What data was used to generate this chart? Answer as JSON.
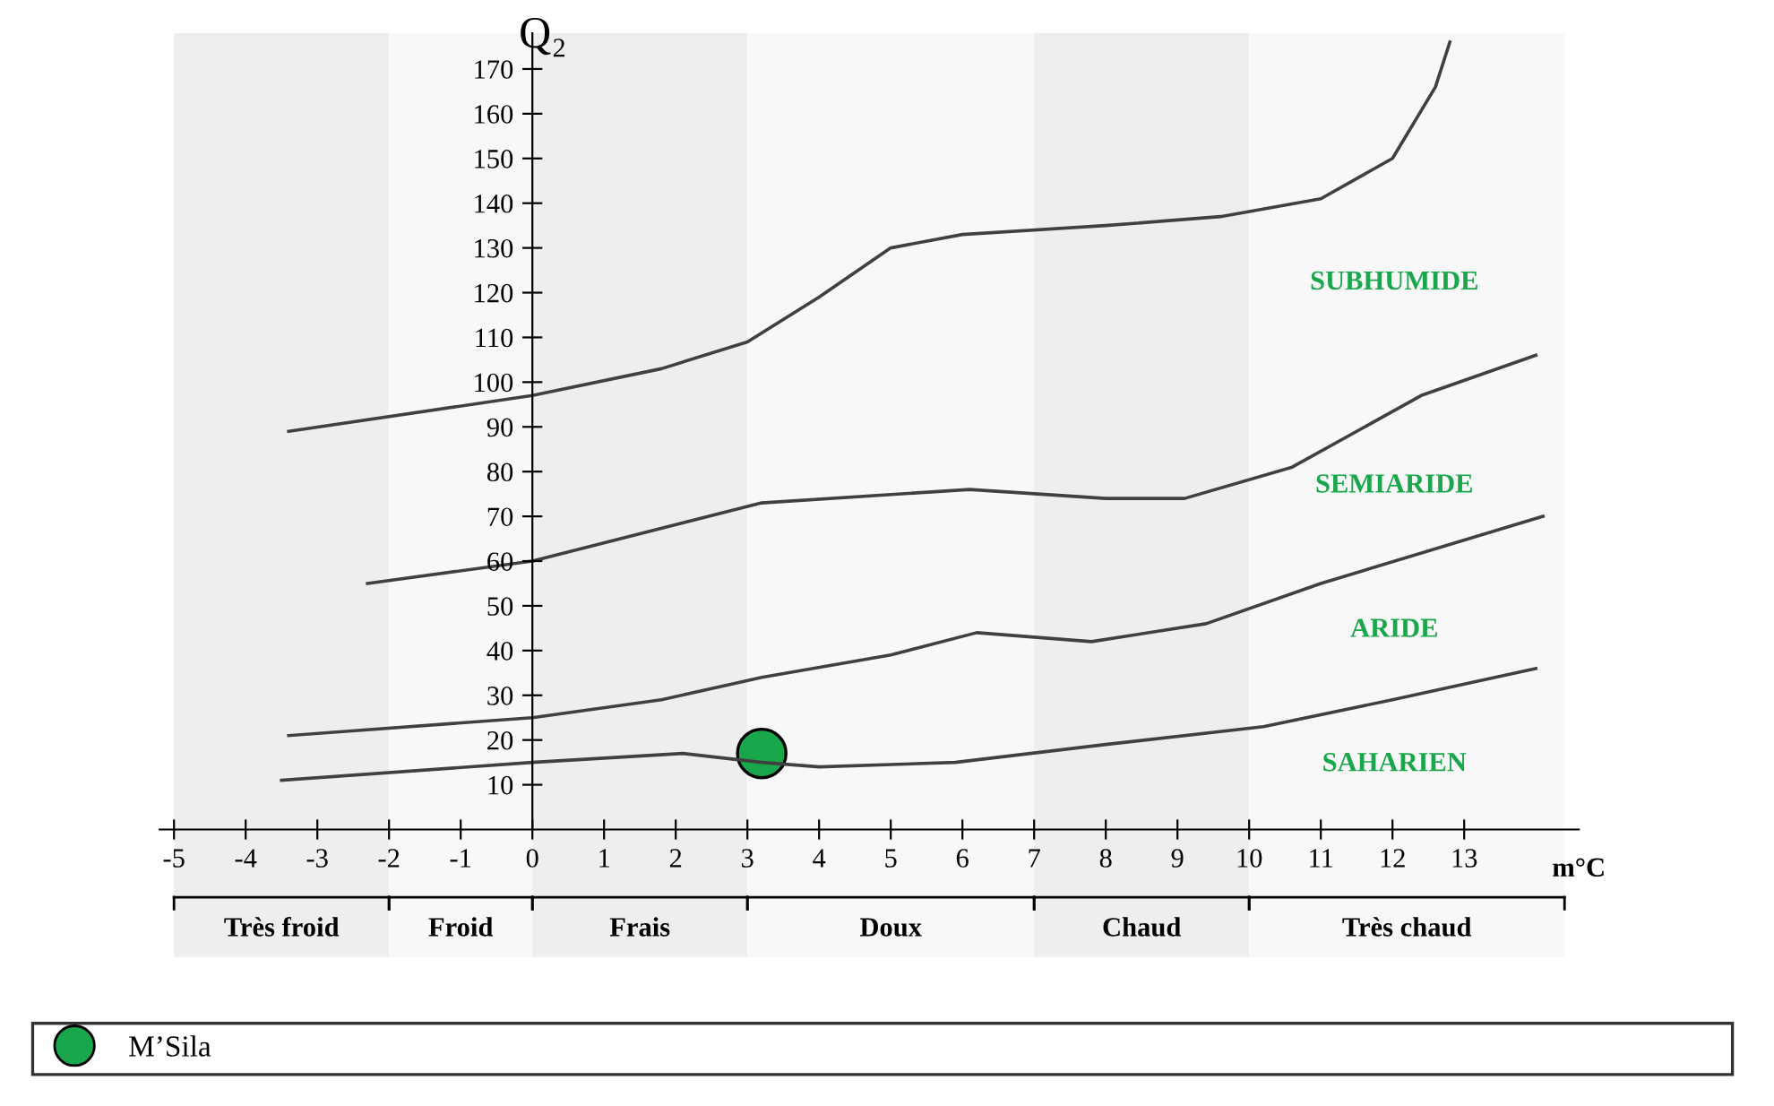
{
  "chart_data": {
    "type": "line",
    "ylabel": "Q₂",
    "xlabel": "m°C",
    "xlim": [
      -5.2,
      14.6
    ],
    "ylim": [
      0,
      178
    ],
    "xticks": [
      -5,
      -4,
      -3,
      -2,
      -1,
      0,
      1,
      2,
      3,
      4,
      5,
      6,
      7,
      8,
      9,
      10,
      11,
      12,
      13
    ],
    "yticks": [
      10,
      20,
      30,
      40,
      50,
      60,
      70,
      80,
      90,
      100,
      110,
      120,
      130,
      140,
      150,
      160,
      170
    ],
    "grid": false,
    "legend": "bottom",
    "line_style": "solid",
    "marker": "none",
    "series": [
      {
        "color": "#404040",
        "x": [
          -3.4,
          0,
          1.8,
          3,
          4,
          5,
          6,
          8,
          9.6,
          11,
          12,
          12.6,
          12.8
        ],
        "values": [
          89,
          97,
          103,
          109,
          119,
          130,
          133,
          135,
          137,
          141,
          150,
          166,
          176
        ]
      },
      {
        "color": "#404040",
        "x": [
          -2.3,
          0,
          3.2,
          6.1,
          8,
          9.1,
          10.6,
          12.4,
          14
        ],
        "values": [
          55,
          60,
          73,
          76,
          74,
          74,
          81,
          97,
          106
        ]
      },
      {
        "color": "#404040",
        "x": [
          -3.4,
          0,
          1.8,
          3.2,
          5,
          6.2,
          7.8,
          9.4,
          11,
          14.1
        ],
        "values": [
          21,
          25,
          29,
          34,
          39,
          44,
          42,
          46,
          55,
          70
        ]
      },
      {
        "color": "#404040",
        "x": [
          -3.5,
          0,
          2.1,
          3.2,
          4,
          5.9,
          8,
          10.2,
          12,
          14
        ],
        "values": [
          11,
          15,
          17,
          15,
          14,
          15,
          19,
          23,
          29,
          36
        ]
      },
      {
        "type": "scatter",
        "name": "M’Sila",
        "color": "#1aa64a",
        "marker": "circle",
        "x": [
          3.2
        ],
        "values": [
          17
        ]
      }
    ],
    "bands": [
      {
        "axis": "x",
        "from": -5,
        "to": -2,
        "label": "Très froid",
        "color": "#eeeeee"
      },
      {
        "axis": "x",
        "from": -2,
        "to": 0,
        "label": "Froid",
        "color": "#f8f8f8"
      },
      {
        "axis": "x",
        "from": 0,
        "to": 3,
        "label": "Frais",
        "color": "#eeeeee"
      },
      {
        "axis": "x",
        "from": 3,
        "to": 7,
        "label": "Doux",
        "color": "#f8f8f8"
      },
      {
        "axis": "x",
        "from": 7,
        "to": 10,
        "label": "Chaud",
        "color": "#eeeeee"
      },
      {
        "axis": "x",
        "from": 10,
        "to": 14.4,
        "label": "Très chaud",
        "color": "#f8f8f8"
      }
    ],
    "annotations": [
      "SUBHUMIDE",
      "SEMIARIDE",
      "ARIDE",
      "SAHARIEN"
    ]
  }
}
